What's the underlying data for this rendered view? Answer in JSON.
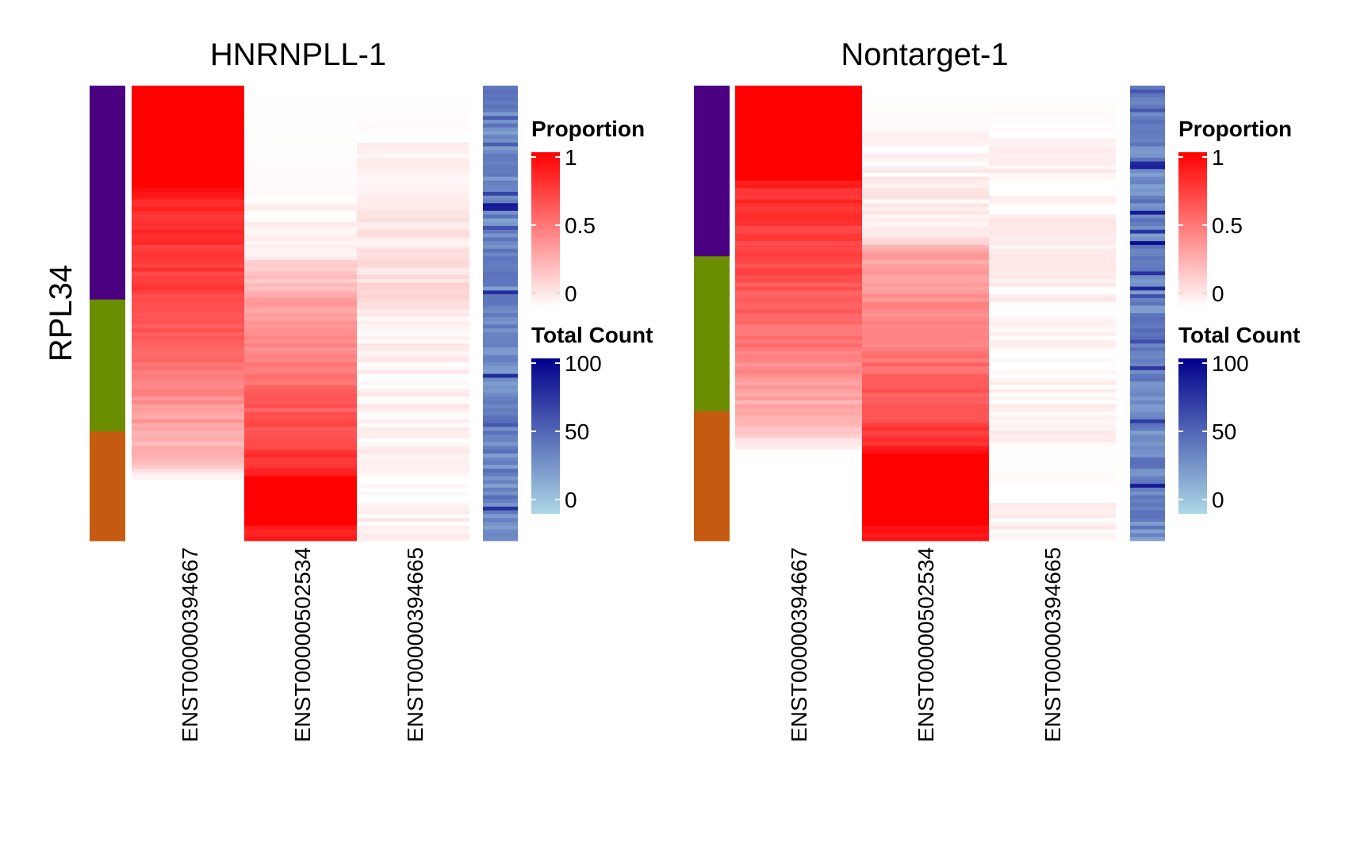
{
  "chart_data": [
    {
      "type": "heatmap",
      "title": "HNRNPLL-1",
      "ylabel": "RPL34",
      "columns": [
        "ENST00000394667",
        "ENST00000502534",
        "ENST00000394665"
      ],
      "row_groups": [
        {
          "color": "#4B0082",
          "fraction": 0.47
        },
        {
          "color": "#6B8E00",
          "fraction": 0.29
        },
        {
          "color": "#C55A11",
          "fraction": 0.24
        }
      ],
      "column_profiles": [
        {
          "column": "ENST00000394667",
          "proportion_anchors": [
            [
              0.0,
              1.0
            ],
            [
              0.22,
              1.0
            ],
            [
              0.24,
              0.85
            ],
            [
              0.45,
              0.75
            ],
            [
              0.65,
              0.5
            ],
            [
              0.82,
              0.25
            ],
            [
              0.86,
              0.1
            ],
            [
              0.87,
              0.0
            ],
            [
              1.0,
              0.0
            ]
          ]
        },
        {
          "column": "ENST00000502534",
          "proportion_anchors": [
            [
              0.0,
              0.0
            ],
            [
              0.24,
              0.02
            ],
            [
              0.36,
              0.05
            ],
            [
              0.47,
              0.35
            ],
            [
              0.6,
              0.5
            ],
            [
              0.75,
              0.7
            ],
            [
              0.85,
              0.85
            ],
            [
              0.86,
              1.0
            ],
            [
              0.96,
              1.0
            ],
            [
              0.97,
              0.9
            ],
            [
              1.0,
              0.9
            ]
          ]
        },
        {
          "column": "ENST00000394665",
          "proportion_anchors": [
            [
              0.0,
              0.0
            ],
            [
              0.25,
              0.05
            ],
            [
              0.37,
              0.1
            ],
            [
              0.47,
              0.15
            ],
            [
              0.5,
              0.05
            ],
            [
              0.75,
              0.05
            ],
            [
              0.9,
              0.02
            ],
            [
              0.96,
              0.05
            ],
            [
              1.0,
              0.05
            ]
          ]
        }
      ],
      "total_count_range": [
        0,
        100
      ],
      "legends": [
        {
          "title": "Proportion",
          "colors": [
            "#ffffff",
            "#ff0000"
          ],
          "ticks": [
            "1",
            "0.5",
            "0"
          ],
          "tick_values": [
            1,
            0.5,
            0
          ]
        },
        {
          "title": "Total Count",
          "colors": [
            "#add8e6",
            "#00008b"
          ],
          "ticks": [
            "100",
            "50",
            "0"
          ],
          "tick_values": [
            100,
            50,
            0
          ]
        }
      ]
    },
    {
      "type": "heatmap",
      "title": "Nontarget-1",
      "ylabel": "",
      "columns": [
        "ENST00000394667",
        "ENST00000502534",
        "ENST00000394665"
      ],
      "row_groups": [
        {
          "color": "#4B0082",
          "fraction": 0.375
        },
        {
          "color": "#6B8E00",
          "fraction": 0.34
        },
        {
          "color": "#C55A11",
          "fraction": 0.285
        }
      ],
      "column_profiles": [
        {
          "column": "ENST00000394667",
          "proportion_anchors": [
            [
              0.0,
              1.0
            ],
            [
              0.2,
              1.0
            ],
            [
              0.21,
              0.85
            ],
            [
              0.35,
              0.75
            ],
            [
              0.6,
              0.5
            ],
            [
              0.75,
              0.25
            ],
            [
              0.8,
              0.1
            ],
            [
              0.81,
              0.0
            ],
            [
              1.0,
              0.0
            ]
          ]
        },
        {
          "column": "ENST00000502534",
          "proportion_anchors": [
            [
              0.0,
              0.0
            ],
            [
              0.2,
              0.05
            ],
            [
              0.33,
              0.1
            ],
            [
              0.36,
              0.35
            ],
            [
              0.55,
              0.5
            ],
            [
              0.72,
              0.7
            ],
            [
              0.8,
              0.85
            ],
            [
              0.81,
              1.0
            ],
            [
              0.96,
              1.0
            ],
            [
              0.97,
              0.9
            ],
            [
              1.0,
              0.9
            ]
          ]
        },
        {
          "column": "ENST00000394665",
          "proportion_anchors": [
            [
              0.0,
              0.0
            ],
            [
              0.21,
              0.05
            ],
            [
              0.33,
              0.05
            ],
            [
              0.36,
              0.1
            ],
            [
              0.45,
              0.05
            ],
            [
              0.6,
              0.02
            ],
            [
              0.75,
              0.05
            ],
            [
              0.81,
              0.0
            ],
            [
              0.97,
              0.05
            ],
            [
              1.0,
              0.05
            ]
          ]
        }
      ],
      "total_count_range": [
        0,
        100
      ],
      "legends": [
        {
          "title": "Proportion",
          "colors": [
            "#ffffff",
            "#ff0000"
          ],
          "ticks": [
            "1",
            "0.5",
            "0"
          ],
          "tick_values": [
            1,
            0.5,
            0
          ]
        },
        {
          "title": "Total Count",
          "colors": [
            "#add8e6",
            "#00008b"
          ],
          "ticks": [
            "100",
            "50",
            "0"
          ],
          "tick_values": [
            100,
            50,
            0
          ]
        }
      ]
    }
  ]
}
